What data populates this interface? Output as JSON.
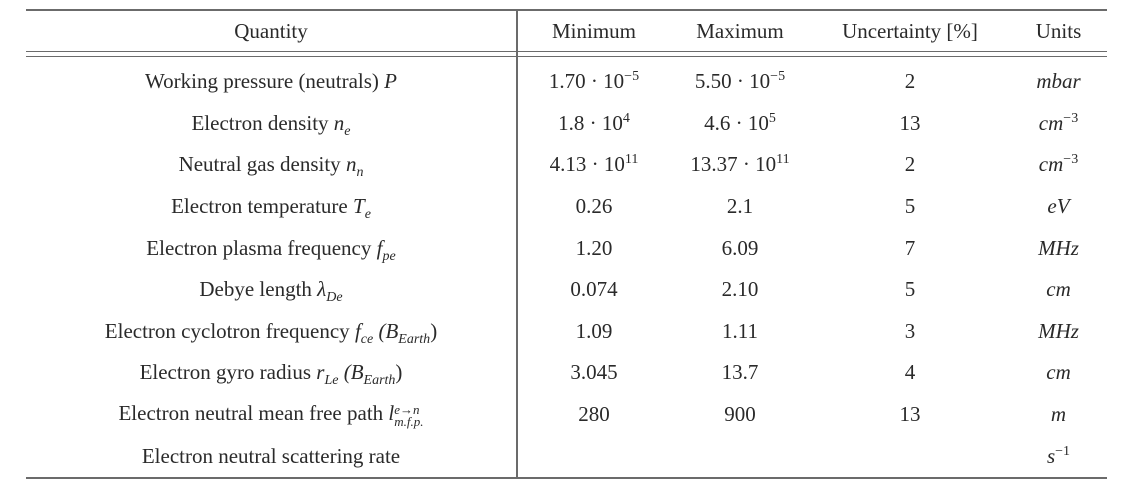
{
  "table": {
    "headers": {
      "quantity": "Quantity",
      "minimum": "Minimum",
      "maximum": "Maximum",
      "uncertainty": "Uncertainty [%]",
      "units": "Units"
    },
    "rows": [
      {
        "quantity_text": "Working pressure (neutrals) ",
        "symbol": "P",
        "symbol_sub": "",
        "symbol_suffix": "",
        "min_base": "1.70 · 10",
        "min_exp": "−5",
        "max_base": "5.50 · 10",
        "max_exp": "−5",
        "uncertainty": "2",
        "unit_base": "mbar",
        "unit_exp": ""
      },
      {
        "quantity_text": "Electron density ",
        "symbol": "n",
        "symbol_sub": "e",
        "symbol_suffix": "",
        "min_base": "1.8 · 10",
        "min_exp": "4",
        "max_base": "4.6 · 10",
        "max_exp": "5",
        "uncertainty": "13",
        "unit_base": "cm",
        "unit_exp": "−3"
      },
      {
        "quantity_text": "Neutral gas density ",
        "symbol": "n",
        "symbol_sub": "n",
        "symbol_suffix": "",
        "min_base": "4.13 · 10",
        "min_exp": "11",
        "max_base": "13.37 · 10",
        "max_exp": "11",
        "uncertainty": "2",
        "unit_base": "cm",
        "unit_exp": "−3"
      },
      {
        "quantity_text": "Electron temperature ",
        "symbol": "T",
        "symbol_sub": "e",
        "symbol_suffix": "",
        "min_base": "0.26",
        "min_exp": "",
        "max_base": "2.1",
        "max_exp": "",
        "uncertainty": "5",
        "unit_base": "eV",
        "unit_exp": ""
      },
      {
        "quantity_text": "Electron plasma frequency ",
        "symbol": "f",
        "symbol_sub": "pe",
        "symbol_suffix": "",
        "min_base": "1.20",
        "min_exp": "",
        "max_base": "6.09",
        "max_exp": "",
        "uncertainty": "7",
        "unit_base": "MHz",
        "unit_exp": ""
      },
      {
        "quantity_text": "Debye length ",
        "symbol": "λ",
        "symbol_sub": "De",
        "symbol_suffix": "",
        "min_base": "0.074",
        "min_exp": "",
        "max_base": "2.10",
        "max_exp": "",
        "uncertainty": "5",
        "unit_base": "cm",
        "unit_exp": ""
      },
      {
        "quantity_text": "Electron cyclotron frequency ",
        "symbol": "f",
        "symbol_sub": "ce",
        "symbol_suffix": " (B",
        "suffix_sub": "Earth",
        "suffix_close": ")",
        "min_base": "1.09",
        "min_exp": "",
        "max_base": "1.11",
        "max_exp": "",
        "uncertainty": "3",
        "unit_base": "MHz",
        "unit_exp": ""
      },
      {
        "quantity_text": "Electron gyro radius ",
        "symbol": "r",
        "symbol_sub": "Le",
        "symbol_suffix": " (B",
        "suffix_sub": "Earth",
        "suffix_close": ")",
        "min_base": "3.045",
        "min_exp": "",
        "max_base": "13.7",
        "max_exp": "",
        "uncertainty": "4",
        "unit_base": "cm",
        "unit_exp": ""
      },
      {
        "quantity_text": "Electron neutral mean free path ",
        "symbol": "l",
        "symbol_sub": "m.f.p.",
        "symbol_sup": "e→n",
        "symbol_suffix": "",
        "min_base": "280",
        "min_exp": "",
        "max_base": "900",
        "max_exp": "",
        "uncertainty": "13",
        "unit_base": "m",
        "unit_exp": ""
      },
      {
        "quantity_text": "Electron neutral scattering rate",
        "symbol": "",
        "symbol_sub": "",
        "symbol_suffix": "",
        "min_base": "",
        "min_exp": "",
        "max_base": "",
        "max_exp": "",
        "uncertainty": "",
        "unit_base": "s",
        "unit_exp": "−1"
      }
    ]
  }
}
